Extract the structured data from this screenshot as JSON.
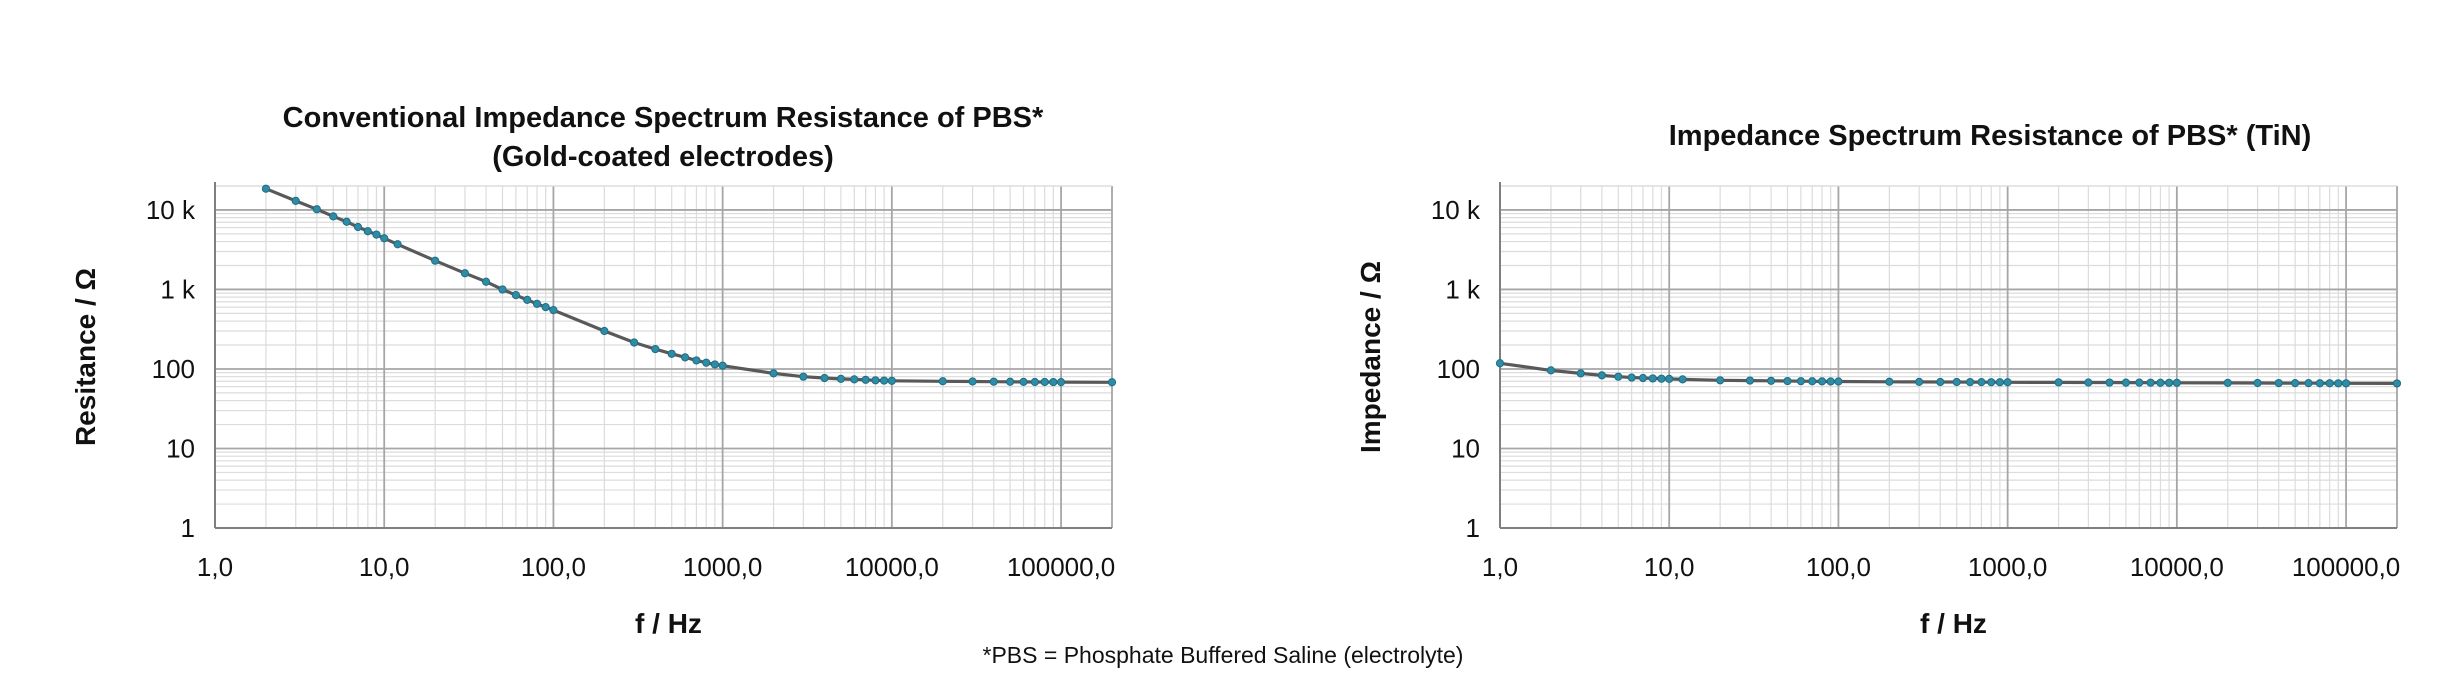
{
  "footnote": "*PBS = Phosphate Buffered Saline (electrolyte)",
  "chart_data": [
    {
      "type": "scatter",
      "title_line1": "Conventional Impedance Spectrum Resistance of PBS*",
      "title_line2": "(Gold-coated electrodes)",
      "xlabel": "f / Hz",
      "ylabel": "Resitance / Ω",
      "x_scale": "log",
      "y_scale": "log",
      "xlim": [
        1,
        200000
      ],
      "ylim": [
        1,
        20000
      ],
      "x_ticks": [
        1,
        10,
        100,
        1000,
        10000,
        100000
      ],
      "x_tick_labels": [
        "1,0",
        "10,0",
        "100,0",
        "1000,0",
        "10000,0",
        "100000,0"
      ],
      "y_ticks": [
        1,
        10,
        100,
        1000,
        10000
      ],
      "y_tick_labels": [
        "1",
        "10",
        "100",
        "1 k",
        "10 k"
      ],
      "grid": true,
      "series": [
        {
          "x": [
            2,
            3,
            4,
            5,
            6,
            7,
            8,
            9,
            10,
            12,
            20,
            30,
            40,
            50,
            60,
            70,
            80,
            90,
            100,
            200,
            300,
            400,
            500,
            600,
            700,
            800,
            900,
            1000,
            2000,
            3000,
            4000,
            5000,
            6000,
            7000,
            8000,
            9000,
            10000,
            20000,
            30000,
            40000,
            50000,
            60000,
            70000,
            80000,
            90000,
            100000,
            200000
          ],
          "y": [
            18500,
            13000,
            10200,
            8300,
            7100,
            6100,
            5400,
            4900,
            4400,
            3700,
            2300,
            1600,
            1250,
            1000,
            850,
            740,
            660,
            600,
            550,
            300,
            215,
            178,
            155,
            140,
            128,
            120,
            114,
            110,
            88,
            80,
            77,
            75,
            74,
            73,
            72,
            71.5,
            71,
            70,
            69.5,
            69.2,
            69,
            68.8,
            68.6,
            68.5,
            68.4,
            68.3,
            68
          ]
        }
      ]
    },
    {
      "type": "scatter",
      "title_line1": "Impedance Spectrum Resistance of PBS* (TiN)",
      "title_line2": "",
      "xlabel": "f / Hz",
      "ylabel": "Impedance / Ω",
      "x_scale": "log",
      "y_scale": "log",
      "xlim": [
        1,
        200000
      ],
      "ylim": [
        1,
        20000
      ],
      "x_ticks": [
        1,
        10,
        100,
        1000,
        10000,
        100000
      ],
      "x_tick_labels": [
        "1,0",
        "10,0",
        "100,0",
        "1000,0",
        "10000,0",
        "100000,0"
      ],
      "y_ticks": [
        1,
        10,
        100,
        1000,
        10000
      ],
      "y_tick_labels": [
        "1",
        "10",
        "100",
        "1 k",
        "10 k"
      ],
      "grid": true,
      "series": [
        {
          "x": [
            1,
            2,
            3,
            4,
            5,
            6,
            7,
            8,
            9,
            10,
            12,
            20,
            30,
            40,
            50,
            60,
            70,
            80,
            90,
            100,
            200,
            300,
            400,
            500,
            600,
            700,
            800,
            900,
            1000,
            2000,
            3000,
            4000,
            5000,
            6000,
            7000,
            8000,
            9000,
            10000,
            20000,
            30000,
            40000,
            50000,
            60000,
            70000,
            80000,
            90000,
            100000,
            200000
          ],
          "y": [
            118,
            96,
            88,
            83,
            80,
            78,
            77,
            76,
            75.5,
            75,
            74,
            72,
            71.5,
            71,
            70.5,
            70.2,
            70,
            69.8,
            69.6,
            69.5,
            69,
            68.8,
            68.6,
            68.5,
            68.4,
            68.3,
            68.2,
            68.1,
            68,
            67.8,
            67.6,
            67.5,
            67.4,
            67.3,
            67.2,
            67.1,
            67,
            67,
            66.8,
            66.6,
            66.5,
            66.4,
            66.3,
            66.2,
            66.1,
            66,
            66,
            65.8
          ]
        }
      ]
    }
  ]
}
